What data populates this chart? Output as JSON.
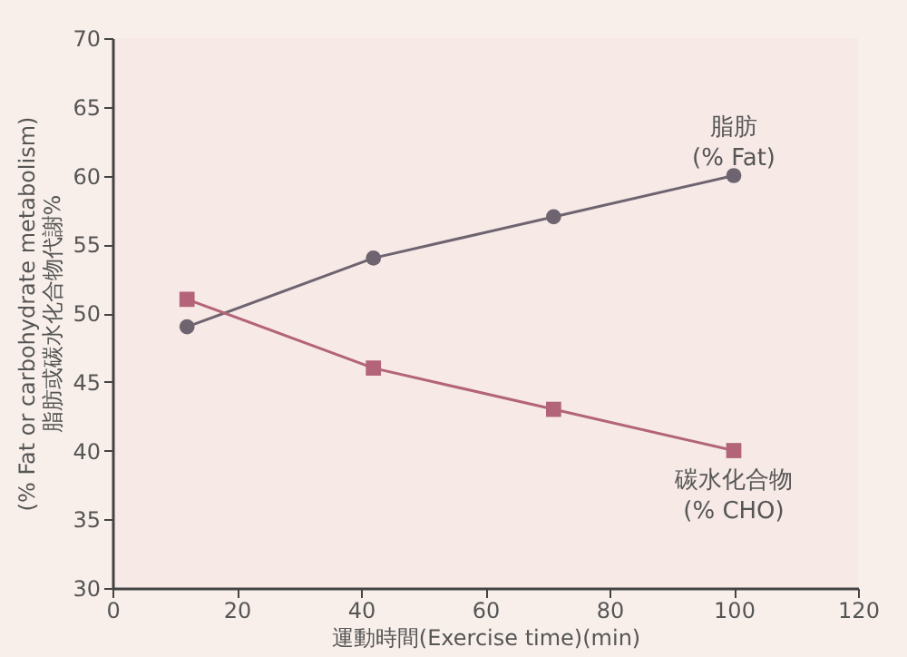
{
  "chart_data": {
    "type": "line",
    "xlabel": "運動時間(Exercise time)(min)",
    "ylabel": [
      "脂肪或碳水化合物代謝%",
      "(% Fat or carbohydrate metabolism)"
    ],
    "x": [
      12,
      42,
      71,
      100
    ],
    "series": [
      {
        "name": "脂肪 (% Fat)",
        "color": "#6e6470",
        "marker": "circle",
        "values": [
          49,
          54,
          57,
          60
        ]
      },
      {
        "name": "碳水化合物 (% CHO)",
        "color": "#b36478",
        "marker": "square",
        "values": [
          51,
          46,
          43,
          40
        ]
      }
    ],
    "xlim": [
      0,
      120
    ],
    "xticks": [
      0,
      20,
      40,
      60,
      80,
      100,
      120
    ],
    "ylim": [
      30,
      70
    ],
    "yticks": [
      30,
      35,
      40,
      45,
      50,
      55,
      60,
      65,
      70
    ],
    "grid": false,
    "line_style": "solid"
  }
}
